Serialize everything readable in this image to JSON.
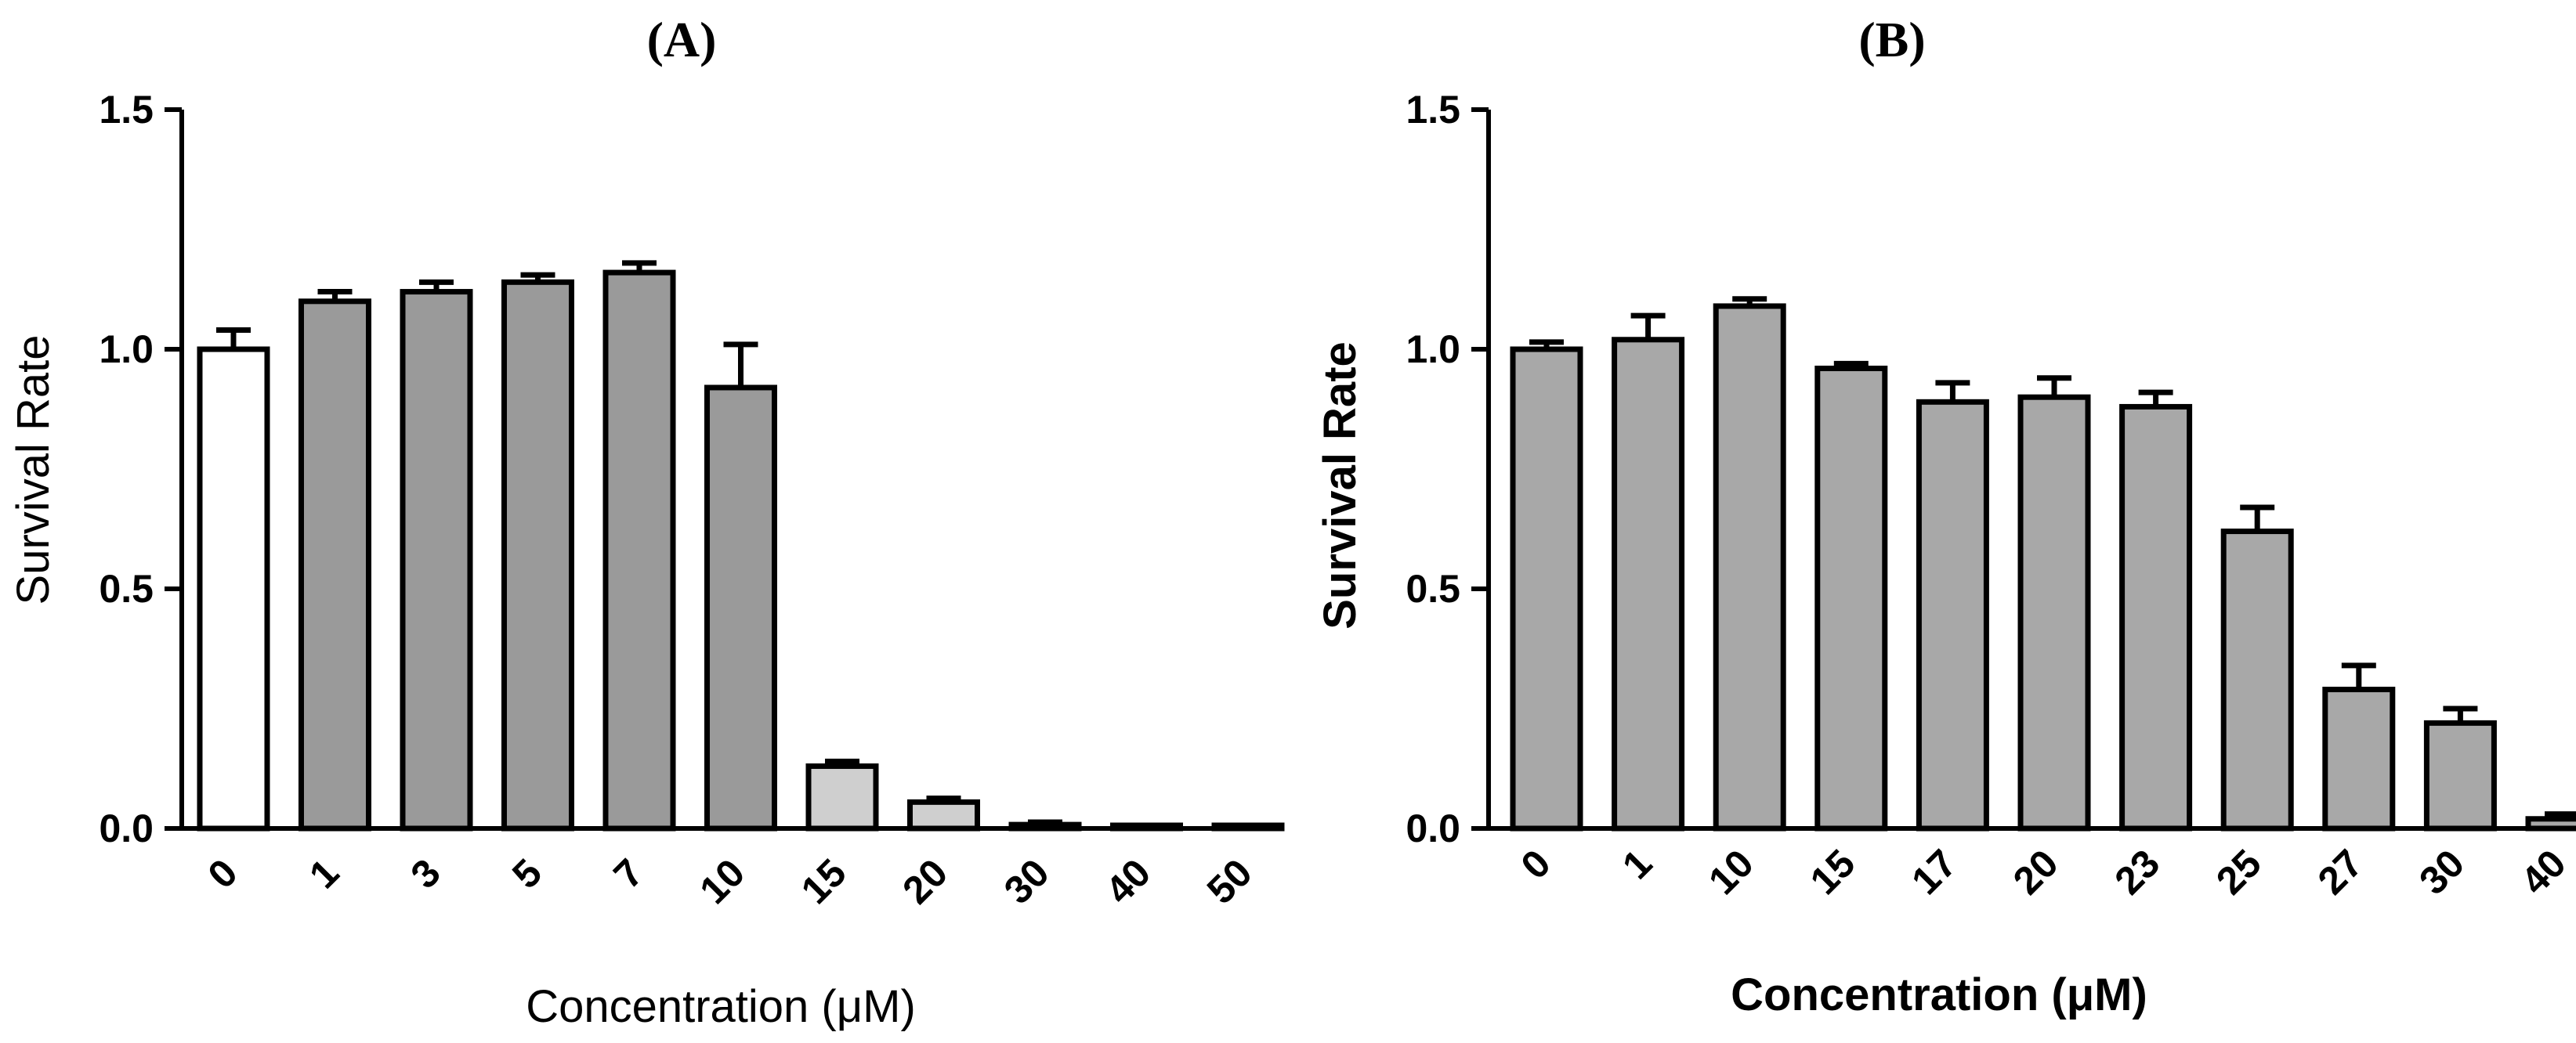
{
  "chart_data": [
    {
      "type": "bar",
      "panel_label": "(A)",
      "xlabel": "Concentration  (μM)",
      "ylabel": "Survival  Rate",
      "ylim": [
        0,
        1.5
      ],
      "yticks": [
        "0.0",
        "0.5",
        "1.0",
        "1.5"
      ],
      "grid": false,
      "categories": [
        "0",
        "1",
        "3",
        "5",
        "7",
        "10",
        "15",
        "20",
        "30",
        "40",
        "50"
      ],
      "values": [
        1.0,
        1.1,
        1.12,
        1.14,
        1.16,
        0.92,
        0.13,
        0.055,
        0.008,
        0.004,
        0.004
      ],
      "errors": [
        0.04,
        0.02,
        0.02,
        0.015,
        0.02,
        0.09,
        0.01,
        0.008,
        0.005,
        0.002,
        0.002
      ],
      "bar_fill": [
        "#ffffff",
        "#9a9a9a",
        "#9a9a9a",
        "#9a9a9a",
        "#9a9a9a",
        "#9a9a9a",
        "#cfcfcf",
        "#cfcfcf",
        "#cfcfcf",
        "#cfcfcf",
        "#cfcfcf"
      ]
    },
    {
      "type": "bar",
      "panel_label": "(B)",
      "xlabel": "Concentration (μM)",
      "ylabel": "Survival  Rate",
      "ylim": [
        0,
        1.5
      ],
      "yticks": [
        "0.0",
        "0.5",
        "1.0",
        "1.5"
      ],
      "grid": false,
      "categories": [
        "0",
        "1",
        "10",
        "15",
        "17",
        "20",
        "23",
        "25",
        "27",
        "30",
        "40"
      ],
      "values": [
        1.0,
        1.02,
        1.09,
        0.96,
        0.89,
        0.9,
        0.88,
        0.62,
        0.29,
        0.22,
        0.02
      ],
      "errors": [
        0.015,
        0.05,
        0.015,
        0.01,
        0.04,
        0.04,
        0.03,
        0.05,
        0.05,
        0.03,
        0.01
      ],
      "bar_fill": [
        "#a8a8a8",
        "#a8a8a8",
        "#a8a8a8",
        "#a8a8a8",
        "#a8a8a8",
        "#a8a8a8",
        "#a8a8a8",
        "#a8a8a8",
        "#a8a8a8",
        "#a8a8a8",
        "#a8a8a8"
      ]
    }
  ]
}
